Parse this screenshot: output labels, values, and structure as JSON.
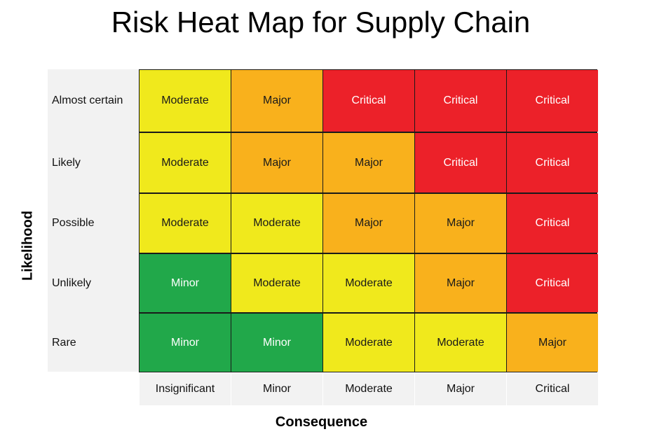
{
  "title": "Risk Heat Map for Supply Chain",
  "chart_data": {
    "type": "heatmap",
    "title": "Risk Heat Map for Supply Chain",
    "xlabel": "Consequence",
    "ylabel": "Likelihood",
    "x_categories": [
      "Insignificant",
      "Minor",
      "Moderate",
      "Major",
      "Critical"
    ],
    "y_categories": [
      "Almost certain",
      "Likely",
      "Possible",
      "Unlikely",
      "Rare"
    ],
    "cells": [
      [
        "Moderate",
        "Major",
        "Critical",
        "Critical",
        "Critical"
      ],
      [
        "Moderate",
        "Major",
        "Major",
        "Critical",
        "Critical"
      ],
      [
        "Moderate",
        "Moderate",
        "Major",
        "Major",
        "Critical"
      ],
      [
        "Minor",
        "Moderate",
        "Moderate",
        "Major",
        "Critical"
      ],
      [
        "Minor",
        "Minor",
        "Moderate",
        "Moderate",
        "Major"
      ]
    ],
    "risk_colors": {
      "Minor": "#21a84a",
      "Moderate": "#f0e91c",
      "Major": "#f9b11c",
      "Critical": "#ec2129"
    },
    "text_colors": {
      "Minor": "#ffffff",
      "Moderate": "#1a1a1a",
      "Major": "#1a1a1a",
      "Critical": "#ffffff"
    }
  }
}
